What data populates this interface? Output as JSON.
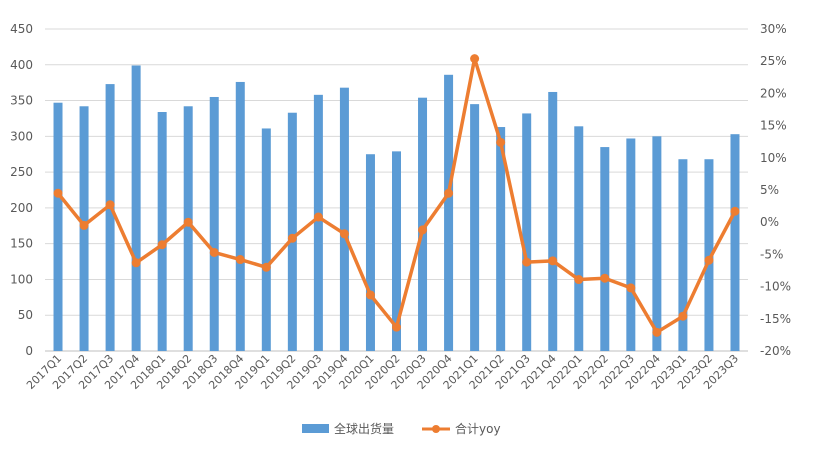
{
  "chart_data": {
    "type": "bar+line",
    "categories": [
      "2017Q1",
      "2017Q2",
      "2017Q3",
      "2017Q4",
      "2018Q1",
      "2018Q2",
      "2018Q3",
      "2018Q4",
      "2019Q1",
      "2019Q2",
      "2019Q3",
      "2019Q4",
      "2020Q1",
      "2020Q2",
      "2020Q3",
      "2020Q4",
      "2021Q1",
      "2021Q2",
      "2021Q3",
      "2021Q4",
      "2022Q1",
      "2022Q2",
      "2022Q3",
      "2022Q4",
      "2023Q1",
      "2023Q2",
      "2023Q3"
    ],
    "left_axis": {
      "min": 0,
      "max": 450,
      "step": 50,
      "ticks": [
        "0",
        "50",
        "100",
        "150",
        "200",
        "250",
        "300",
        "350",
        "400",
        "450"
      ]
    },
    "right_axis": {
      "min": -20,
      "max": 30,
      "step": 5,
      "ticks": [
        "-20%",
        "-15%",
        "-10%",
        "-5%",
        "0%",
        "5%",
        "10%",
        "15%",
        "20%",
        "25%",
        "30%"
      ]
    },
    "series": [
      {
        "name": "全球出货量",
        "type": "bar",
        "axis": "left",
        "color": "#5B9BD5",
        "values": [
          347,
          342,
          373,
          399,
          334,
          342,
          355,
          376,
          311,
          333,
          358,
          368,
          275,
          279,
          354,
          386,
          345,
          313,
          332,
          362,
          314,
          285,
          297,
          300,
          268,
          268,
          303
        ]
      },
      {
        "name": "合计yoy",
        "type": "line",
        "axis": "right",
        "color": "#ED7D31",
        "values": [
          4.5,
          -0.5,
          2.7,
          -6.3,
          -3.5,
          0.0,
          -4.7,
          -5.8,
          -7.0,
          -2.5,
          0.8,
          -1.8,
          -11.3,
          -16.3,
          -1.2,
          4.5,
          25.4,
          12.4,
          -6.2,
          -6.0,
          -8.9,
          -8.7,
          -10.2,
          -17.1,
          -14.6,
          -5.9,
          1.7
        ]
      }
    ],
    "grid": true,
    "legend": "bottom"
  }
}
